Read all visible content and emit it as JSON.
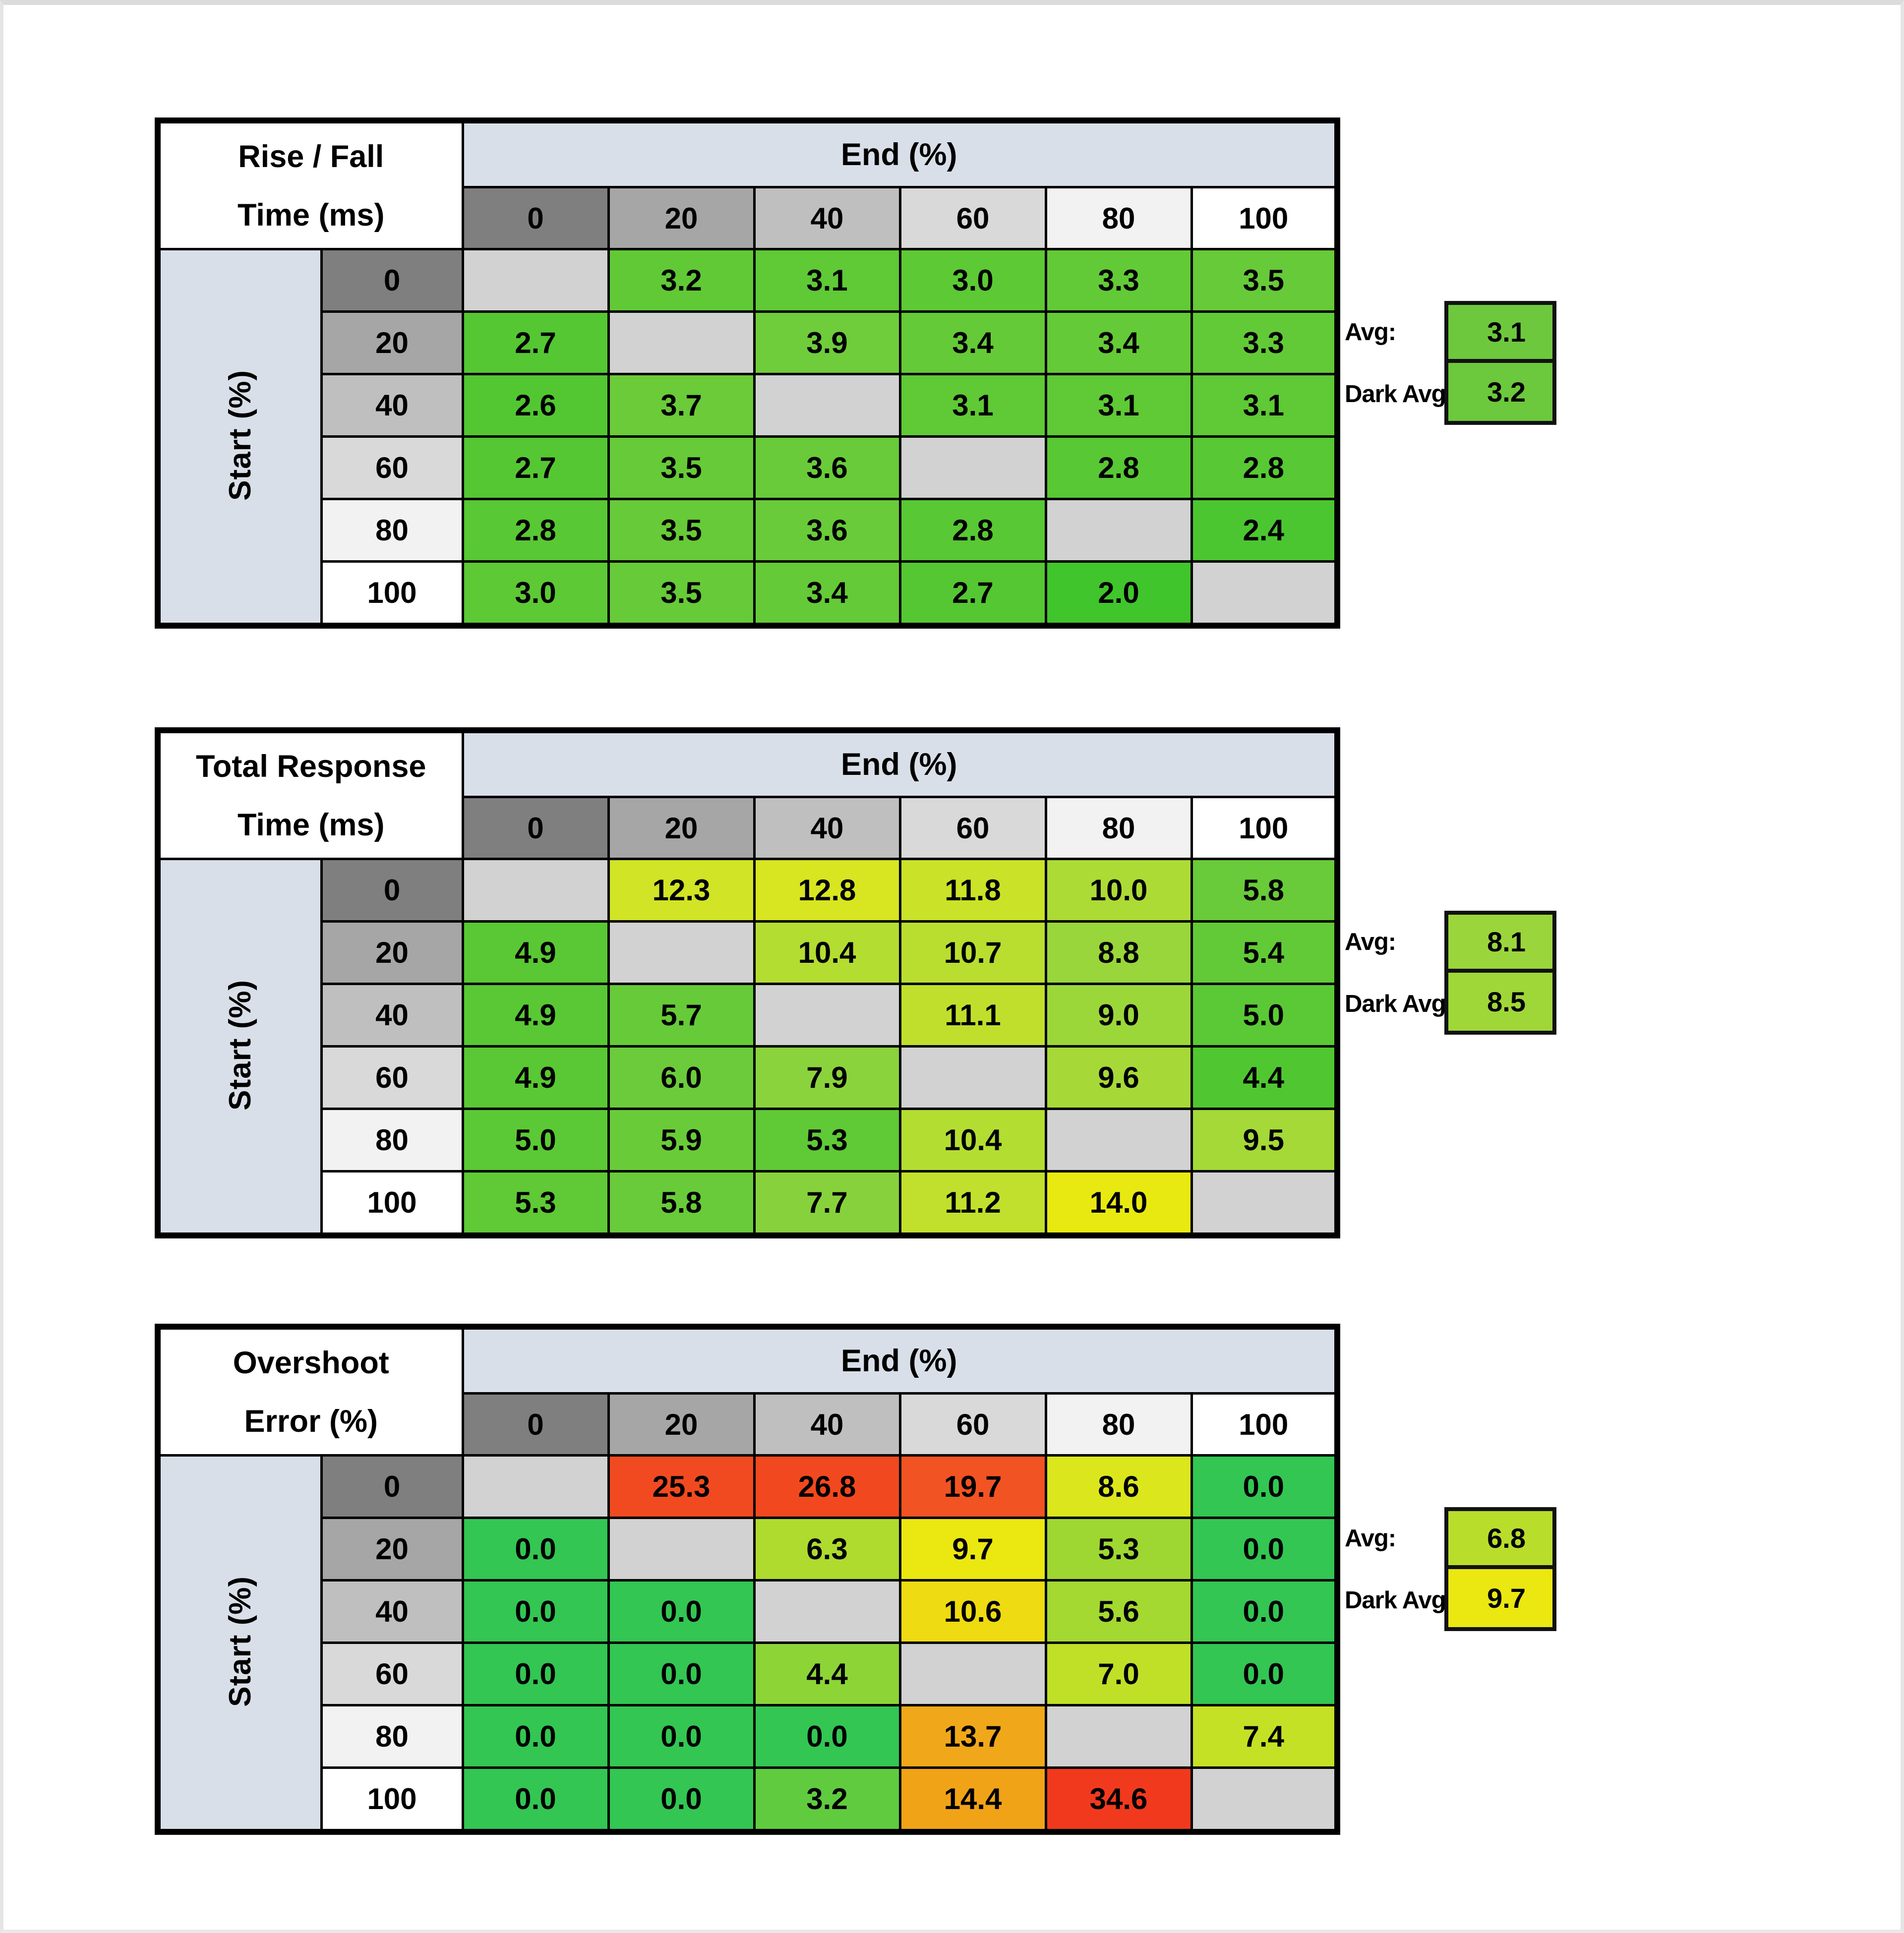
{
  "palette": {
    "band_blue_gray": "#d9dfe8",
    "diagonal_blank": "#d2d2d2",
    "header_grays": [
      "#7f7f7f",
      "#a6a6a6",
      "#bfbfbf",
      "#d9d9d9",
      "#f2f2f2",
      "#ffffff"
    ],
    "grid_border": "#000000",
    "page_background": "#ffffff",
    "page_edge_gray": "#dcdcdc"
  },
  "chart_data": [
    {
      "type": "heatmap",
      "name": "rise-fall-time",
      "title_lines": [
        "Rise / Fall",
        "Time (ms)"
      ],
      "col_axis_label": "End (%)",
      "row_axis_label": "Start (%)",
      "columns": [
        "0",
        "20",
        "40",
        "60",
        "80",
        "100"
      ],
      "rows": [
        "0",
        "20",
        "40",
        "60",
        "80",
        "100"
      ],
      "values": [
        [
          null,
          "3.2",
          "3.1",
          "3.0",
          "3.3",
          "3.5"
        ],
        [
          "2.7",
          null,
          "3.9",
          "3.4",
          "3.4",
          "3.3"
        ],
        [
          "2.6",
          "3.7",
          null,
          "3.1",
          "3.1",
          "3.1"
        ],
        [
          "2.7",
          "3.5",
          "3.6",
          null,
          "2.8",
          "2.8"
        ],
        [
          "2.8",
          "3.5",
          "3.6",
          "2.8",
          null,
          "2.4"
        ],
        [
          "3.0",
          "3.5",
          "3.4",
          "2.7",
          "2.0",
          null
        ]
      ],
      "colors": [
        [
          null,
          "#61c936",
          "#5fc936",
          "#5dc935",
          "#63ca37",
          "#67ca38"
        ],
        [
          "#55c733",
          null,
          "#6fcc3b",
          "#65ca37",
          "#65ca37",
          "#63ca37"
        ],
        [
          "#53c732",
          "#6bcb39",
          null,
          "#5fc936",
          "#5fc936",
          "#5fc936"
        ],
        [
          "#55c733",
          "#67ca38",
          "#69cb39",
          null,
          "#58c834",
          "#58c834"
        ],
        [
          "#58c834",
          "#67ca38",
          "#69cb39",
          "#58c834",
          null,
          "#4cc630"
        ],
        [
          "#5dc935",
          "#67ca38",
          "#65ca37",
          "#55c733",
          "#41c52c",
          null
        ]
      ],
      "avg_label": "Avg:",
      "avg_value": "3.1",
      "avg_color": "#6ec83d",
      "dark_avg_label": "Dark Avg:",
      "dark_avg_value": "3.2",
      "dark_avg_color": "#6cc83c"
    },
    {
      "type": "heatmap",
      "name": "total-response-time",
      "title_lines": [
        "Total Response",
        "Time (ms)"
      ],
      "col_axis_label": "End (%)",
      "row_axis_label": "Start (%)",
      "columns": [
        "0",
        "20",
        "40",
        "60",
        "80",
        "100"
      ],
      "rows": [
        "0",
        "20",
        "40",
        "60",
        "80",
        "100"
      ],
      "values": [
        [
          null,
          "12.3",
          "12.8",
          "11.8",
          "10.0",
          "5.8"
        ],
        [
          "4.9",
          null,
          "10.4",
          "10.7",
          "8.8",
          "5.4"
        ],
        [
          "4.9",
          "5.7",
          null,
          "11.1",
          "9.0",
          "5.0"
        ],
        [
          "4.9",
          "6.0",
          "7.9",
          null,
          "9.6",
          "4.4"
        ],
        [
          "5.0",
          "5.9",
          "5.3",
          "10.4",
          null,
          "9.5"
        ],
        [
          "5.3",
          "5.8",
          "7.7",
          "11.2",
          "14.0",
          null
        ]
      ],
      "colors": [
        [
          null,
          "#d1e425",
          "#d8e521",
          "#cae228",
          "#addb35",
          "#69cb39"
        ],
        [
          "#59c834",
          null,
          "#b4dd32",
          "#b9de30",
          "#99d63b",
          "#62ca37"
        ],
        [
          "#59c834",
          "#67ca38",
          null,
          "#c0df2d",
          "#9cd73a",
          "#5bc935"
        ],
        [
          "#59c834",
          "#6ccb3a",
          "#8bd33c",
          null,
          "#a6d938",
          "#50c731"
        ],
        [
          "#5bc935",
          "#6acb39",
          "#60c936",
          "#b4dd32",
          null,
          "#a4d938"
        ],
        [
          "#60c936",
          "#69cb39",
          "#87d23c",
          "#c1e02d",
          "#e9e912",
          null
        ]
      ],
      "avg_label": "Avg:",
      "avg_value": "8.1",
      "avg_color": "#9ad63b",
      "dark_avg_label": "Dark Avg:",
      "dark_avg_value": "8.5",
      "dark_avg_color": "#9fd739"
    },
    {
      "type": "heatmap",
      "name": "overshoot-error",
      "title_lines": [
        "Overshoot",
        "Error (%)"
      ],
      "col_axis_label": "End (%)",
      "row_axis_label": "Start (%)",
      "columns": [
        "0",
        "20",
        "40",
        "60",
        "80",
        "100"
      ],
      "rows": [
        "0",
        "20",
        "40",
        "60",
        "80",
        "100"
      ],
      "values": [
        [
          null,
          "25.3",
          "26.8",
          "19.7",
          "8.6",
          "0.0"
        ],
        [
          "0.0",
          null,
          "6.3",
          "9.7",
          "5.3",
          "0.0"
        ],
        [
          "0.0",
          "0.0",
          null,
          "10.6",
          "5.6",
          "0.0"
        ],
        [
          "0.0",
          "0.0",
          "4.4",
          null,
          "7.0",
          "0.0"
        ],
        [
          "0.0",
          "0.0",
          "0.0",
          "13.7",
          null,
          "7.4"
        ],
        [
          "0.0",
          "0.0",
          "3.2",
          "14.4",
          "34.6",
          null
        ]
      ],
      "colors": [
        [
          null,
          "#f24a20",
          "#f2481f",
          "#f25322",
          "#dce61d",
          "#33c653"
        ],
        [
          "#33c653",
          null,
          "#aedb2e",
          "#ebe711",
          "#9ed732",
          "#33c653"
        ],
        [
          "#33c653",
          "#33c653",
          null,
          "#eedb11",
          "#a3d931",
          "#33c653"
        ],
        [
          "#33c653",
          "#33c653",
          "#8dd437",
          null,
          "#c0e027",
          "#33c653"
        ],
        [
          "#33c653",
          "#33c653",
          "#33c653",
          "#f0a81a",
          null,
          "#c5e125"
        ],
        [
          "#33c653",
          "#33c653",
          "#60cb3e",
          "#f0a317",
          "#f13a1d",
          null
        ]
      ],
      "avg_label": "Avg:",
      "avg_value": "6.8",
      "avg_color": "#b9dd2b",
      "dark_avg_label": "Dark Avg:",
      "dark_avg_value": "9.7",
      "dark_avg_color": "#ebe711"
    }
  ]
}
